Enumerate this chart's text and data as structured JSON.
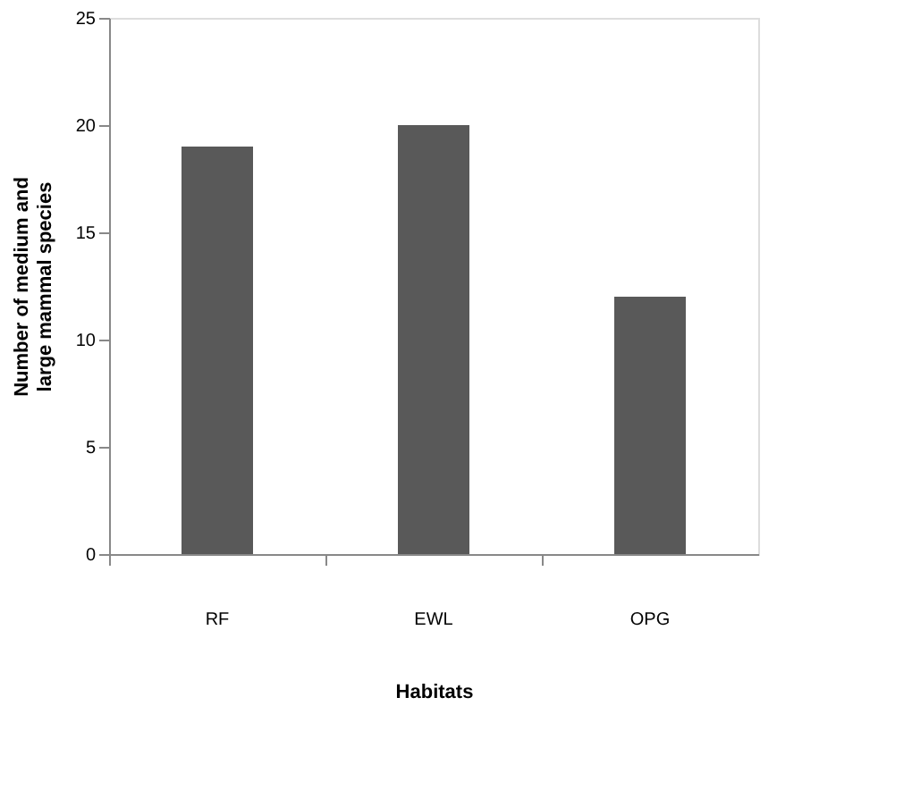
{
  "chart_data": {
    "type": "bar",
    "xlabel": "Habitats",
    "ylabel": "Number of medium and large mammal species",
    "categories": [
      "RF",
      "EWL",
      "OPG"
    ],
    "values": [
      19,
      20,
      12
    ],
    "color": "#595959",
    "ylim": [
      0,
      25
    ],
    "yticks": [
      0,
      5,
      10,
      15,
      20,
      25
    ],
    "grid": false
  }
}
